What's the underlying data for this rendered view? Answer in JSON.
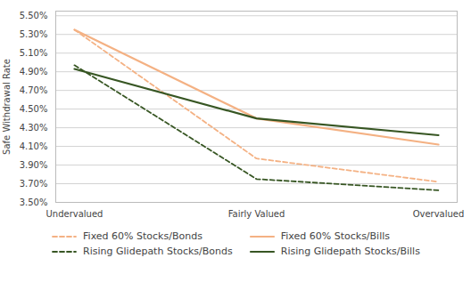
{
  "chart_data": {
    "type": "line",
    "categories": [
      "Undervalued",
      "Fairly Valued",
      "Overvalued"
    ],
    "series": [
      {
        "name": "Fixed 60% Stocks/Bonds",
        "color": "#F4B183",
        "line_style": "dashed",
        "values": [
          0.0535,
          0.0397,
          0.0372
        ]
      },
      {
        "name": "Fixed 60% Stocks/Bills",
        "color": "#F4B183",
        "line_style": "solid",
        "values": [
          0.0535,
          0.044,
          0.0412
        ]
      },
      {
        "name": "Rising Glidepath Stocks/Bonds",
        "color": "#375623",
        "line_style": "dashed",
        "values": [
          0.0497,
          0.0375,
          0.0363
        ]
      },
      {
        "name": "Rising Glidepath Stocks/Bills",
        "color": "#375623",
        "line_style": "solid",
        "values": [
          0.0493,
          0.044,
          0.0422
        ]
      }
    ],
    "ylabel": "Safe Withdrawal Rate",
    "ylim": [
      0.035,
      0.0555
    ],
    "yticks": [
      {
        "value": 0.035,
        "label": "3.50%"
      },
      {
        "value": 0.037,
        "label": "3.70%"
      },
      {
        "value": 0.039,
        "label": "3.90%"
      },
      {
        "value": 0.041,
        "label": "4.10%"
      },
      {
        "value": 0.043,
        "label": "4.30%"
      },
      {
        "value": 0.045,
        "label": "4.50%"
      },
      {
        "value": 0.047,
        "label": "4.70%"
      },
      {
        "value": 0.049,
        "label": "4.90%"
      },
      {
        "value": 0.051,
        "label": "5.10%"
      },
      {
        "value": 0.053,
        "label": "5.30%"
      },
      {
        "value": 0.055,
        "label": "5.50%"
      }
    ],
    "grid": true,
    "legend": "bottom"
  }
}
